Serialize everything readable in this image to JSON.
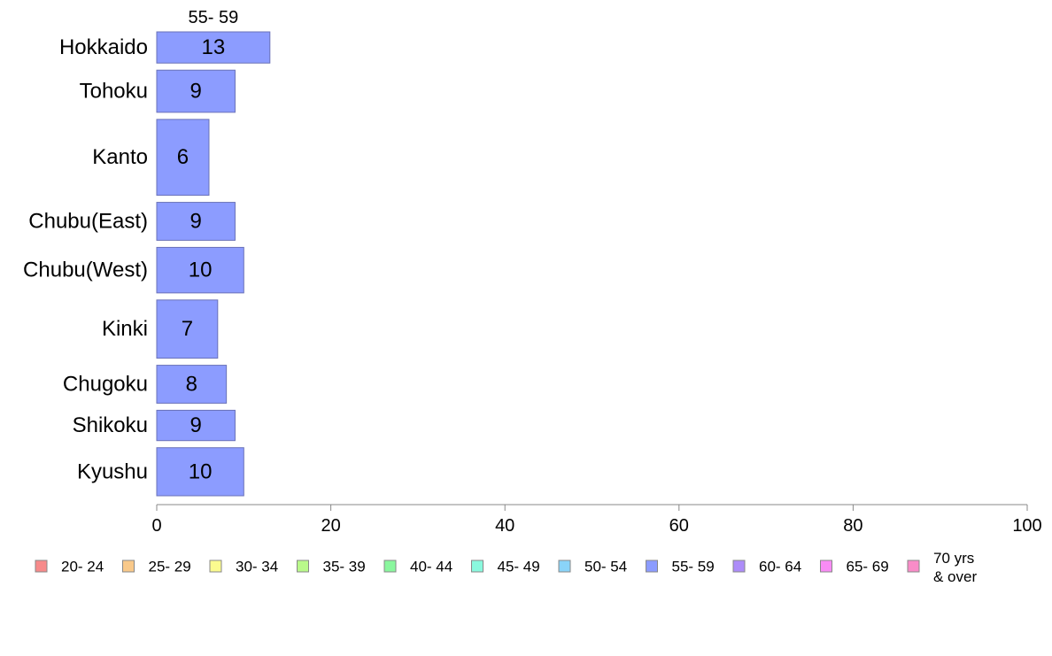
{
  "chart_data": {
    "type": "bar",
    "orientation": "horizontal",
    "stacked": true,
    "categories": [
      "Hokkaido",
      "Tohoku",
      "Kanto",
      "Chubu(East)",
      "Chubu(West)",
      "Kinki",
      "Chugoku",
      "Shikoku",
      "Kyushu"
    ],
    "category_widths": [
      37,
      50,
      90,
      45,
      54,
      69,
      45,
      36,
      57
    ],
    "series": [
      {
        "name": "55- 59",
        "color": "#8c9cff",
        "values": [
          13,
          9,
          6,
          9,
          10,
          7,
          8,
          9,
          10
        ]
      }
    ],
    "series_top_label": "55- 59",
    "xlim": [
      0,
      100
    ],
    "xticks": [
      "0",
      "20",
      "40",
      "60",
      "80",
      "100"
    ],
    "grid": false,
    "legend": {
      "position": "bottom",
      "items": [
        {
          "label": "20- 24",
          "color": "#f78a8a"
        },
        {
          "label": "25- 29",
          "color": "#f9c98a"
        },
        {
          "label": "30- 34",
          "color": "#fbfb8f"
        },
        {
          "label": "35- 39",
          "color": "#b9f98a"
        },
        {
          "label": "40- 44",
          "color": "#8af79e"
        },
        {
          "label": "45- 49",
          "color": "#8af9de"
        },
        {
          "label": "50- 54",
          "color": "#8ad4f9"
        },
        {
          "label": "55- 59",
          "color": "#8c9cff"
        },
        {
          "label": "60- 64",
          "color": "#ad8cf9"
        },
        {
          "label": "65- 69",
          "color": "#f98cf5"
        },
        {
          "label": "70 yrs\n& over",
          "color": "#f98cc8"
        }
      ]
    }
  }
}
